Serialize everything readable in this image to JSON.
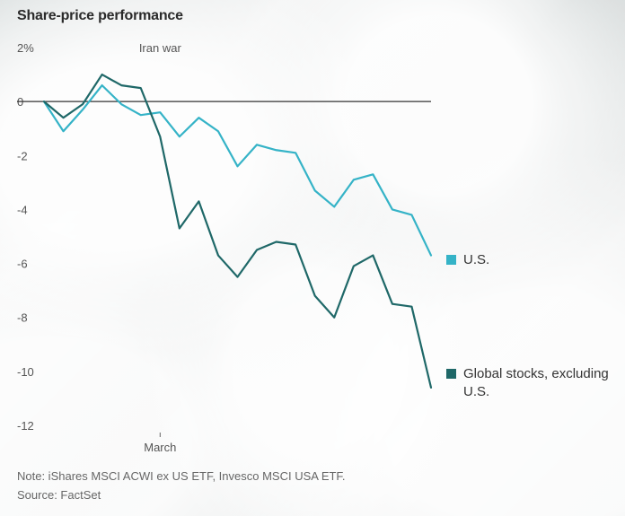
{
  "title": "Share-price performance",
  "annotation": "Iran war",
  "notes": {
    "note": "Note: iShares MSCI ACWI ex US ETF, Invesco MSCI USA ETF.",
    "source": "Source: FactSet"
  },
  "colors": {
    "us": "#35b3c7",
    "global": "#1f6868",
    "zero_line": "#333333",
    "axis_text": "#555555"
  },
  "legend": {
    "us_label": "U.S.",
    "global_label": "Global stocks, excluding U.S."
  },
  "chart_data": {
    "type": "line",
    "title": "Share-price performance",
    "xlabel": "",
    "ylabel": "",
    "ylim": [
      -12,
      2
    ],
    "y_ticks": [
      2,
      0,
      -2,
      -4,
      -6,
      -8,
      -10,
      -12
    ],
    "y_tick_labels": [
      "2%",
      "0",
      "-2",
      "-4",
      "-6",
      "-8",
      "-10",
      "-12"
    ],
    "x_tick_labels": [
      "March"
    ],
    "x_tick_positions": [
      6
    ],
    "annotation": {
      "label": "Iran war",
      "x_index": 6
    },
    "x": [
      0,
      1,
      2,
      3,
      4,
      5,
      6,
      7,
      8,
      9,
      10,
      11,
      12,
      13,
      14,
      15,
      16,
      17,
      18,
      19,
      20,
      21
    ],
    "series": [
      {
        "name": "U.S.",
        "color": "#35b3c7",
        "values": [
          0,
          -1.1,
          -0.3,
          0.6,
          -0.1,
          -0.5,
          -0.4,
          -1.3,
          -0.6,
          -1.1,
          -2.4,
          -1.6,
          -1.8,
          -1.9,
          -3.3,
          -3.9,
          -2.9,
          -2.7,
          -4.0,
          -4.2,
          -5.7,
          null
        ]
      },
      {
        "name": "Global stocks, excluding U.S.",
        "color": "#1f6868",
        "values": [
          0,
          -0.6,
          -0.1,
          1.0,
          0.6,
          0.5,
          -1.3,
          -4.7,
          -3.7,
          -5.7,
          -6.5,
          -5.5,
          -5.2,
          -5.3,
          -7.2,
          -8.0,
          -6.1,
          -5.7,
          -7.5,
          -7.6,
          -10.6,
          null
        ]
      }
    ],
    "legend_position": "right",
    "grid": false
  }
}
